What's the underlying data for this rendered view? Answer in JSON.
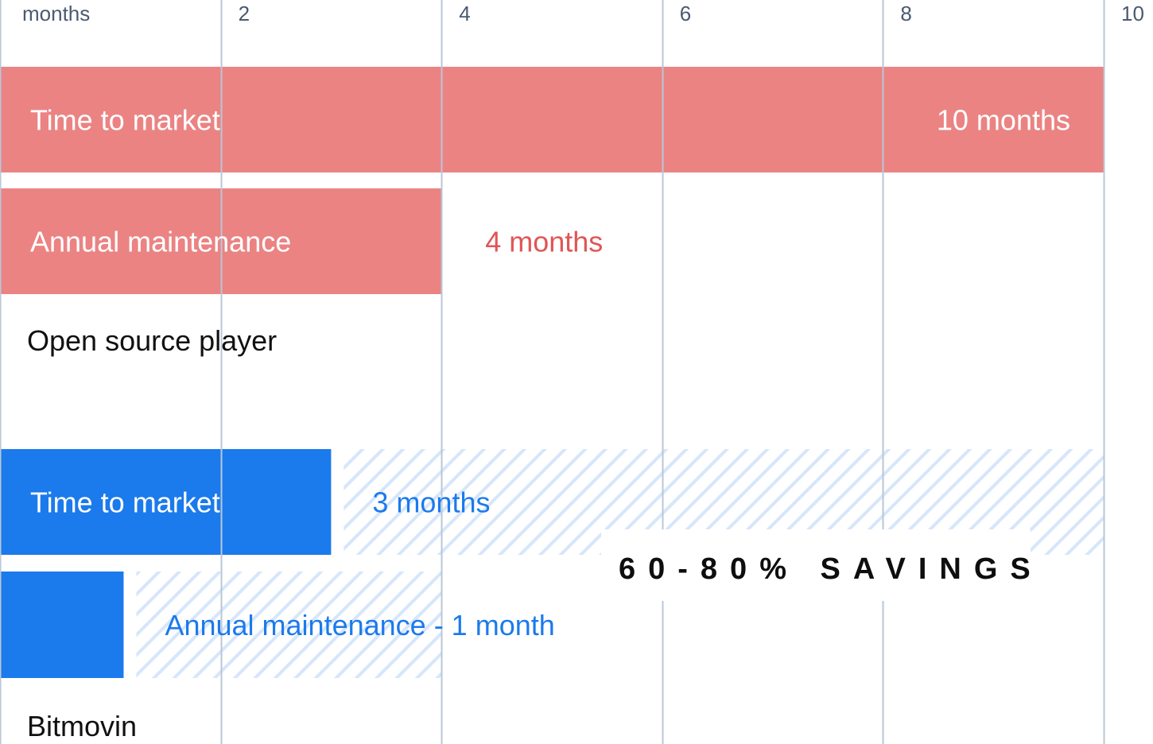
{
  "chart_data": {
    "type": "bar",
    "orientation": "horizontal",
    "x_unit_label": "months",
    "x_ticks": [
      2,
      4,
      6,
      8,
      10
    ],
    "xlim": [
      0,
      10
    ],
    "grid": true,
    "groups": [
      {
        "label": "Open source player",
        "color": "#EB8383",
        "value_color": "#E05555",
        "bars": [
          {
            "label": "Time to market",
            "value": 10,
            "value_label": "10 months"
          },
          {
            "label": "Annual maintenance",
            "value": 4,
            "value_label": "4 months"
          }
        ]
      },
      {
        "label": "Bitmovin",
        "color": "#1B7AEC",
        "value_color": "#1B7AEC",
        "hatch_color": "#D6E6FB",
        "bars": [
          {
            "label": "Time to market",
            "value": 3,
            "value_label": "3 months",
            "hatched_to": 10
          },
          {
            "label": "",
            "value": 1.12,
            "value_label": "Annual maintenance - 1 month",
            "hatched_to": 4
          }
        ]
      }
    ],
    "annotation": "60-80% SAVINGS"
  }
}
